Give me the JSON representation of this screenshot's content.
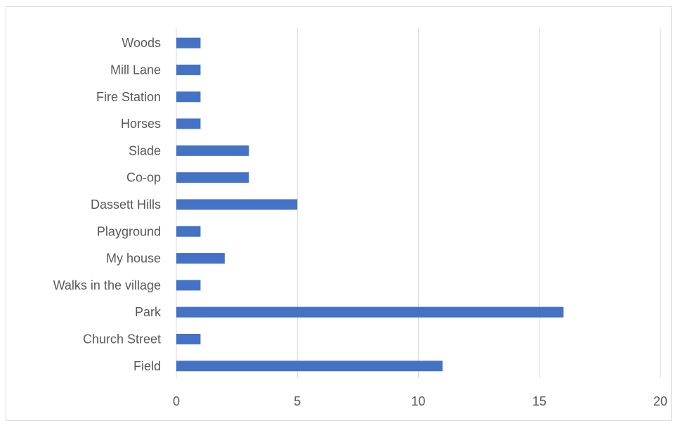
{
  "chart_data": {
    "type": "bar",
    "orientation": "horizontal",
    "categories": [
      "Woods",
      "Mill Lane",
      "Fire Station",
      "Horses",
      "Slade",
      "Co-op",
      "Dassett Hills",
      "Playground",
      "My house",
      "Walks in the village",
      "Park",
      "Church Street",
      "Field"
    ],
    "values": [
      1,
      1,
      1,
      1,
      3,
      3,
      5,
      1,
      2,
      1,
      16,
      1,
      11
    ],
    "xlim": [
      0,
      20
    ],
    "x_ticks": [
      "0",
      "5",
      "10",
      "15",
      "20"
    ],
    "grid": "vertical",
    "bar_color": "#4472C4",
    "grid_color": "#d9d9d9",
    "legend": "none"
  }
}
